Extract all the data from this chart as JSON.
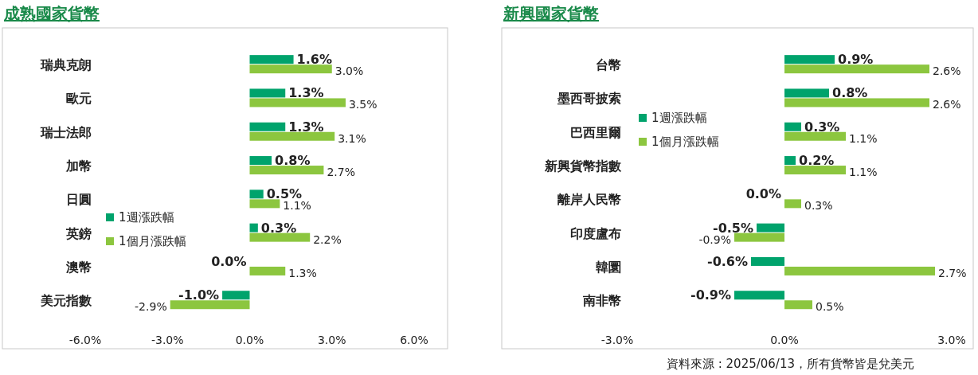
{
  "chart_data": [
    {
      "type": "bar",
      "orientation": "horizontal",
      "title": "成熟國家貨幣",
      "categories": [
        "瑞典克朗",
        "歐元",
        "瑞士法郎",
        "加幣",
        "日圓",
        "英鎊",
        "澳幣",
        "美元指數"
      ],
      "series": [
        {
          "name": "1週漲跌幅",
          "color": "#00a36c",
          "values": [
            1.6,
            1.3,
            1.3,
            0.8,
            0.5,
            0.3,
            0.0,
            -1.0
          ],
          "value_labels": [
            "1.6%",
            "1.3%",
            "1.3%",
            "0.8%",
            "0.5%",
            "0.3%",
            "0.0%",
            "-1.0%"
          ]
        },
        {
          "name": "1個月漲跌幅",
          "color": "#8cc63f",
          "values": [
            3.0,
            3.5,
            3.1,
            2.7,
            1.1,
            2.2,
            1.3,
            -2.9
          ],
          "value_labels": [
            "3.0%",
            "3.5%",
            "3.1%",
            "2.7%",
            "1.1%",
            "2.2%",
            "1.3%",
            "-2.9%"
          ]
        }
      ],
      "xlim": [
        -6,
        6
      ],
      "xticks": [
        {
          "value": -6,
          "label": "-6.0%"
        },
        {
          "value": -3,
          "label": "-3.0%"
        },
        {
          "value": 0,
          "label": "0.0%"
        },
        {
          "value": 3,
          "label": "3.0%"
        },
        {
          "value": 6,
          "label": "6.0%"
        }
      ],
      "grid": false,
      "legend": "left"
    },
    {
      "type": "bar",
      "orientation": "horizontal",
      "title": "新興國家貨幣",
      "categories": [
        "台幣",
        "墨西哥披索",
        "巴西里爾",
        "新興貨幣指數",
        "離岸人民幣",
        "印度盧布",
        "韓圜",
        "南非幣"
      ],
      "series": [
        {
          "name": "1週漲跌幅",
          "color": "#00a36c",
          "values": [
            0.9,
            0.8,
            0.3,
            0.2,
            0.0,
            -0.5,
            -0.6,
            -0.9
          ],
          "value_labels": [
            "0.9%",
            "0.8%",
            "0.3%",
            "0.2%",
            "0.0%",
            "-0.5%",
            "-0.6%",
            "-0.9%"
          ]
        },
        {
          "name": "1個月漲跌幅",
          "color": "#8cc63f",
          "values": [
            2.6,
            2.6,
            1.1,
            1.1,
            0.3,
            -0.9,
            2.7,
            0.5
          ],
          "value_labels": [
            "2.6%",
            "2.6%",
            "1.1%",
            "1.1%",
            "0.3%",
            "-0.9%",
            "2.7%",
            "0.5%"
          ]
        }
      ],
      "xlim": [
        -3,
        3
      ],
      "xticks": [
        {
          "value": -3,
          "label": "-3.0%"
        },
        {
          "value": 0,
          "label": "0.0%"
        },
        {
          "value": 3,
          "label": "3.0%"
        }
      ],
      "grid": false,
      "legend": "top left",
      "annotations": [
        "資料來源 : 2025/06/13，所有貨幣皆是兌美元"
      ]
    }
  ]
}
